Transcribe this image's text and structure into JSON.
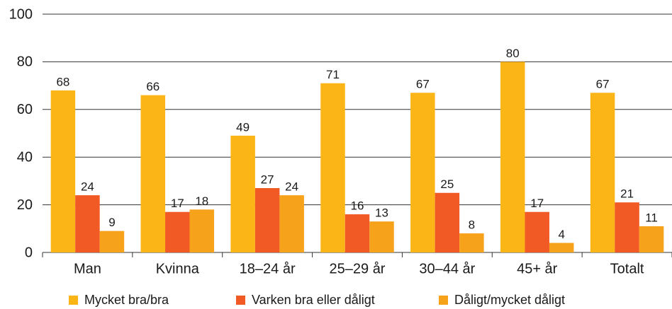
{
  "chart_data": {
    "type": "bar",
    "categories": [
      "Man",
      "Kvinna",
      "18–24 år",
      "25–29 år",
      "30–44 år",
      "45+ år",
      "Totalt"
    ],
    "series": [
      {
        "name": "Mycket bra/bra",
        "color": "#fbb517",
        "values": [
          68,
          66,
          49,
          71,
          67,
          80,
          67
        ]
      },
      {
        "name": "Varken bra eller dåligt",
        "color": "#f15a24",
        "values": [
          24,
          17,
          27,
          16,
          25,
          17,
          21
        ]
      },
      {
        "name": "Dåligt/mycket dåligt",
        "color": "#f7a21b",
        "values": [
          9,
          18,
          24,
          13,
          8,
          4,
          11
        ]
      }
    ],
    "ylim": [
      0,
      100
    ],
    "yticks": [
      0,
      20,
      40,
      60,
      80,
      100
    ],
    "grid": true,
    "legend": "bottom"
  }
}
